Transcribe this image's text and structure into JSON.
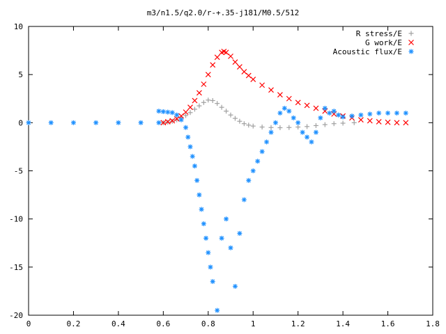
{
  "chart_data": {
    "type": "scatter",
    "title": "m3/n1.5/q2.0/r-+.35-j181/M0.5/512",
    "xlabel": "",
    "ylabel": "",
    "xlim": [
      0,
      1.8
    ],
    "ylim": [
      -20,
      10
    ],
    "xticks": [
      "0",
      "0.2",
      "0.4",
      "0.6",
      "0.8",
      "1",
      "1.2",
      "1.4",
      "1.6",
      "1.8"
    ],
    "yticks": [
      "10",
      "5",
      "0",
      "-5",
      "-10",
      "-15",
      "-20"
    ],
    "grid": false,
    "legend_position": "top-right",
    "series": [
      {
        "name": "R stress/E",
        "marker": "+",
        "color": "#a0a0a0",
        "points": [
          [
            0.6,
            0.0
          ],
          [
            0.62,
            0.05
          ],
          [
            0.64,
            0.15
          ],
          [
            0.66,
            0.3
          ],
          [
            0.68,
            0.5
          ],
          [
            0.7,
            0.75
          ],
          [
            0.72,
            1.05
          ],
          [
            0.74,
            1.4
          ],
          [
            0.76,
            1.75
          ],
          [
            0.78,
            2.1
          ],
          [
            0.8,
            2.35
          ],
          [
            0.82,
            2.3
          ],
          [
            0.84,
            2.0
          ],
          [
            0.86,
            1.6
          ],
          [
            0.88,
            1.2
          ],
          [
            0.9,
            0.8
          ],
          [
            0.92,
            0.45
          ],
          [
            0.94,
            0.15
          ],
          [
            0.96,
            -0.1
          ],
          [
            0.98,
            -0.25
          ],
          [
            1.0,
            -0.35
          ],
          [
            1.04,
            -0.45
          ],
          [
            1.08,
            -0.5
          ],
          [
            1.12,
            -0.52
          ],
          [
            1.16,
            -0.5
          ],
          [
            1.2,
            -0.45
          ],
          [
            1.24,
            -0.4
          ],
          [
            1.28,
            -0.3
          ],
          [
            1.32,
            -0.2
          ],
          [
            1.36,
            -0.1
          ],
          [
            1.4,
            -0.05
          ],
          [
            1.45,
            0.0
          ]
        ]
      },
      {
        "name": "G work/E",
        "marker": "x",
        "color": "#ff0000",
        "points": [
          [
            0.6,
            0.0
          ],
          [
            0.62,
            0.1
          ],
          [
            0.64,
            0.2
          ],
          [
            0.66,
            0.4
          ],
          [
            0.68,
            0.7
          ],
          [
            0.7,
            1.1
          ],
          [
            0.72,
            1.6
          ],
          [
            0.74,
            2.3
          ],
          [
            0.76,
            3.1
          ],
          [
            0.78,
            4.0
          ],
          [
            0.8,
            5.0
          ],
          [
            0.82,
            6.0
          ],
          [
            0.84,
            6.8
          ],
          [
            0.86,
            7.3
          ],
          [
            0.87,
            7.4
          ],
          [
            0.88,
            7.3
          ],
          [
            0.9,
            6.9
          ],
          [
            0.92,
            6.3
          ],
          [
            0.94,
            5.8
          ],
          [
            0.96,
            5.3
          ],
          [
            0.98,
            4.9
          ],
          [
            1.0,
            4.5
          ],
          [
            1.04,
            3.9
          ],
          [
            1.08,
            3.4
          ],
          [
            1.12,
            2.9
          ],
          [
            1.16,
            2.5
          ],
          [
            1.2,
            2.1
          ],
          [
            1.24,
            1.8
          ],
          [
            1.28,
            1.5
          ],
          [
            1.32,
            1.2
          ],
          [
            1.36,
            0.9
          ],
          [
            1.4,
            0.7
          ],
          [
            1.44,
            0.5
          ],
          [
            1.48,
            0.3
          ],
          [
            1.52,
            0.2
          ],
          [
            1.56,
            0.1
          ],
          [
            1.6,
            0.05
          ],
          [
            1.64,
            0.0
          ],
          [
            1.68,
            0.0
          ]
        ]
      },
      {
        "name": "Acoustic flux/E",
        "marker": "*",
        "color": "#1e90ff",
        "points": [
          [
            0.0,
            0.0
          ],
          [
            0.1,
            0.0
          ],
          [
            0.2,
            0.0
          ],
          [
            0.3,
            0.0
          ],
          [
            0.4,
            0.0
          ],
          [
            0.5,
            0.0
          ],
          [
            0.58,
            0.0
          ],
          [
            0.58,
            1.2
          ],
          [
            0.6,
            1.15
          ],
          [
            0.62,
            1.1
          ],
          [
            0.64,
            1.05
          ],
          [
            0.66,
            0.8
          ],
          [
            0.68,
            0.3
          ],
          [
            0.7,
            -0.5
          ],
          [
            0.71,
            -1.5
          ],
          [
            0.72,
            -2.5
          ],
          [
            0.73,
            -3.5
          ],
          [
            0.74,
            -4.5
          ],
          [
            0.75,
            -6.0
          ],
          [
            0.76,
            -7.5
          ],
          [
            0.77,
            -9.0
          ],
          [
            0.78,
            -10.5
          ],
          [
            0.79,
            -12.0
          ],
          [
            0.8,
            -13.5
          ],
          [
            0.81,
            -15.0
          ],
          [
            0.82,
            -16.5
          ],
          [
            0.84,
            -19.5
          ],
          [
            0.86,
            -12.0
          ],
          [
            0.88,
            -10.0
          ],
          [
            0.9,
            -13.0
          ],
          [
            0.92,
            -17.0
          ],
          [
            0.94,
            -11.5
          ],
          [
            0.96,
            -8.0
          ],
          [
            0.98,
            -6.0
          ],
          [
            1.0,
            -5.0
          ],
          [
            1.02,
            -4.0
          ],
          [
            1.04,
            -3.0
          ],
          [
            1.06,
            -2.0
          ],
          [
            1.08,
            -1.0
          ],
          [
            1.1,
            0.0
          ],
          [
            1.12,
            1.0
          ],
          [
            1.14,
            1.5
          ],
          [
            1.16,
            1.2
          ],
          [
            1.18,
            0.5
          ],
          [
            1.2,
            0.0
          ],
          [
            1.22,
            -1.0
          ],
          [
            1.24,
            -1.5
          ],
          [
            1.26,
            -2.0
          ],
          [
            1.28,
            -1.0
          ],
          [
            1.3,
            0.5
          ],
          [
            1.32,
            1.5
          ],
          [
            1.34,
            1.0
          ],
          [
            1.36,
            1.2
          ],
          [
            1.38,
            0.8
          ],
          [
            1.4,
            0.6
          ],
          [
            1.44,
            0.7
          ],
          [
            1.48,
            0.8
          ],
          [
            1.52,
            0.9
          ],
          [
            1.56,
            1.0
          ],
          [
            1.6,
            1.0
          ],
          [
            1.64,
            1.0
          ],
          [
            1.68,
            1.0
          ]
        ]
      }
    ]
  }
}
